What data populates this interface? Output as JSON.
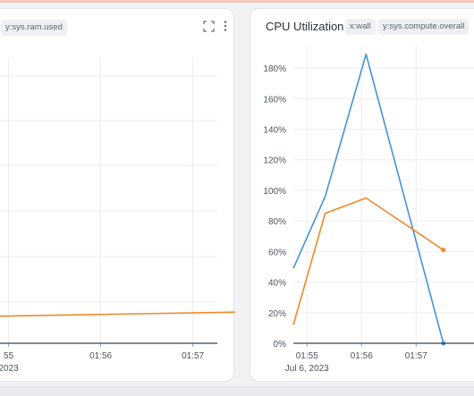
{
  "left_panel": {
    "y_tag": "y:sys.ram.used",
    "x_ticks": [
      {
        "label": "55"
      },
      {
        "label": "01:56"
      },
      {
        "label": "01:57"
      }
    ],
    "date_label": "2023",
    "series": [
      {
        "name": "",
        "color": "#f0892a",
        "x": [
          "01:54:40",
          "01:57:30"
        ],
        "y": [
          0.6,
          0.7
        ]
      }
    ]
  },
  "right_panel": {
    "title": "CPU Utilization",
    "x_tag": "x:wall",
    "y_tag": "y:sys.compute.overall",
    "y_ticks": [
      "0%",
      "20%",
      "40%",
      "60%",
      "80%",
      "100%",
      "120%",
      "140%",
      "160%",
      "180%"
    ],
    "x_ticks": [
      "01:55",
      "01:56",
      "01:57"
    ],
    "date_label": "Jul 6, 2023"
  },
  "chart_data": [
    {
      "type": "line",
      "title": "",
      "x_label": "",
      "y_label": "",
      "x": [
        "01:54:40",
        "01:55",
        "01:55:40",
        "01:56:20",
        "01:57:30"
      ],
      "series": [
        {
          "color": "#f0892a",
          "values": [
            null,
            null,
            null,
            null,
            null
          ]
        }
      ],
      "grid": true
    },
    {
      "type": "line",
      "title": "CPU Utilization",
      "x": [
        "01:54:45",
        "01:55:20",
        "01:56:05",
        "01:57:30"
      ],
      "series": [
        {
          "color": "#4a90d9",
          "values": [
            49,
            96,
            189,
            0
          ]
        },
        {
          "color": "#f0892a",
          "values": [
            12,
            85,
            95,
            61
          ]
        }
      ],
      "ylim": [
        0,
        190
      ],
      "grid": true
    }
  ]
}
